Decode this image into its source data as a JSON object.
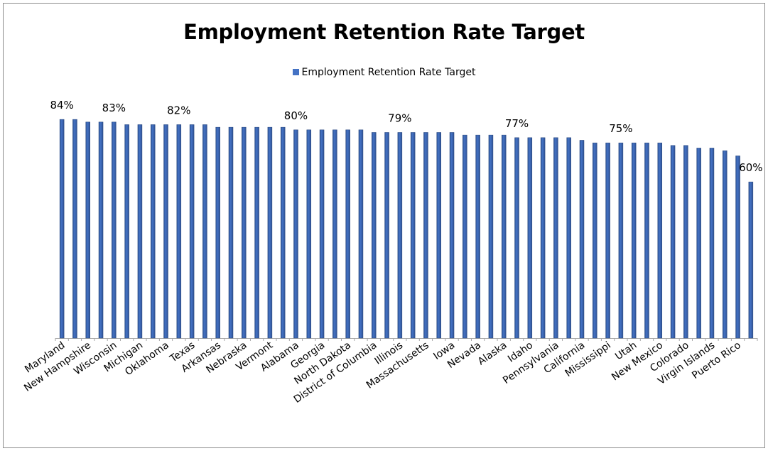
{
  "chart_data": {
    "type": "bar",
    "title": "Employment Retention Rate Target",
    "legend": "top-center",
    "series": [
      {
        "name": "Employment Retention Rate Target",
        "color": "#4472c4",
        "values": [
          84,
          84,
          83,
          83,
          83,
          82,
          82,
          82,
          82,
          82,
          82,
          82,
          81,
          81,
          81,
          81,
          81,
          81,
          80,
          80,
          80,
          80,
          80,
          80,
          79,
          79,
          79,
          79,
          79,
          79,
          79,
          78,
          78,
          78,
          78,
          77,
          77,
          77,
          77,
          77,
          76,
          75,
          75,
          75,
          75,
          75,
          75,
          74,
          74,
          73,
          73,
          72,
          70,
          60
        ]
      }
    ],
    "categories": [
      "Maryland",
      "",
      "New Hampshire",
      "",
      "Wisconsin",
      "",
      "Michigan",
      "",
      "Oklahoma",
      "",
      "Texas",
      "",
      "Arkansas",
      "",
      "Nebraska",
      "",
      "Vermont",
      "",
      "Alabama",
      "",
      "Georgia",
      "",
      "North Dakota",
      "",
      "District of Columbia",
      "",
      "Illinois",
      "",
      "Massachusetts",
      "",
      "Iowa",
      "",
      "Nevada",
      "",
      "Alaska",
      "",
      "Idaho",
      "",
      "Pennsylvania",
      "",
      "California",
      "",
      "Mississippi",
      "",
      "Utah",
      "",
      "New Mexico",
      "",
      "Colorado",
      "",
      "Virgin Islands",
      "",
      "Puerto Rico",
      ""
    ],
    "data_labels": [
      {
        "index": 0,
        "text": "84%"
      },
      {
        "index": 4,
        "text": "83%"
      },
      {
        "index": 9,
        "text": "82%"
      },
      {
        "index": 18,
        "text": "80%"
      },
      {
        "index": 26,
        "text": "79%"
      },
      {
        "index": 35,
        "text": "77%"
      },
      {
        "index": 43,
        "text": "75%"
      },
      {
        "index": 53,
        "text": "60%"
      }
    ],
    "ylim": [
      0,
      100
    ],
    "grid": false,
    "axis_color": "#a6a6a6"
  }
}
